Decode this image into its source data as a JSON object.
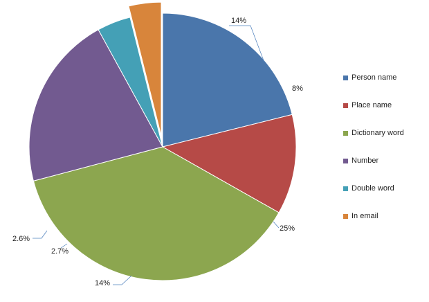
{
  "chart_data": {
    "type": "pie",
    "categories": [
      "Person name",
      "Place name",
      "Dictionary word",
      "Number",
      "Double word",
      "In email"
    ],
    "values": [
      14,
      8,
      25,
      14,
      2.7,
      2.6
    ],
    "labels": [
      "14%",
      "8%",
      "25%",
      "14%",
      "2.7%",
      "2.6%"
    ],
    "colors": [
      "#4a76ab",
      "#b64a47",
      "#8ca64f",
      "#725a90",
      "#44a0b6",
      "#d8853b"
    ],
    "exploded": [
      "In email"
    ],
    "legend_position": "right",
    "title": ""
  }
}
